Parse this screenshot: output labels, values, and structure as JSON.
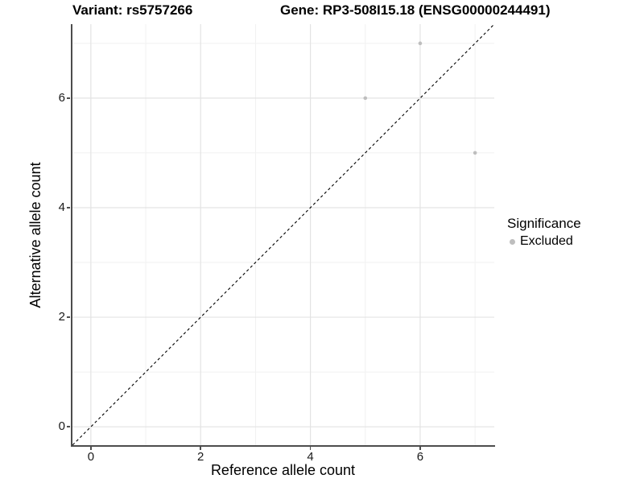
{
  "title": {
    "variant": "Variant: rs5757266",
    "gene": "Gene: RP3-508I15.18 (ENSG00000244491)"
  },
  "axes": {
    "x_label": "Reference allele count",
    "y_label": "Alternative allele count"
  },
  "legend": {
    "title": "Significance",
    "items": [
      {
        "label": "Excluded",
        "marker": "dot-icon",
        "color": "#bebebe"
      }
    ]
  },
  "chart_data": {
    "type": "scatter",
    "title": "Variant: rs5757266 | Gene: RP3-508I15.18 (ENSG00000244491)",
    "xlabel": "Reference allele count",
    "ylabel": "Alternative allele count",
    "xlim": [
      -0.35,
      7.35
    ],
    "ylim": [
      -0.35,
      7.35
    ],
    "x_major_ticks": [
      0,
      2,
      4,
      6
    ],
    "y_major_ticks": [
      0,
      2,
      4,
      6
    ],
    "x_minor_gridlines": [
      1,
      3,
      5,
      7
    ],
    "y_minor_gridlines": [
      1,
      3,
      5,
      7
    ],
    "grid": true,
    "legend_position": "right",
    "series": [
      {
        "name": "Excluded",
        "color": "#bebebe",
        "points": [
          [
            5,
            6
          ],
          [
            6,
            7
          ],
          [
            7,
            5
          ]
        ]
      }
    ],
    "reference_line": {
      "type": "identity",
      "equation": "y = x",
      "style": "dashed",
      "color": "#000000"
    }
  },
  "colors": {
    "background": "#ffffff",
    "panel_background": "#ffffff",
    "grid_major": "#e3e3e3",
    "grid_minor": "#f1f1f1",
    "axis_line": "#4d4d4d",
    "tick_text": "#1a1a1a",
    "point": "#bebebe",
    "identity_line": "#000000"
  }
}
